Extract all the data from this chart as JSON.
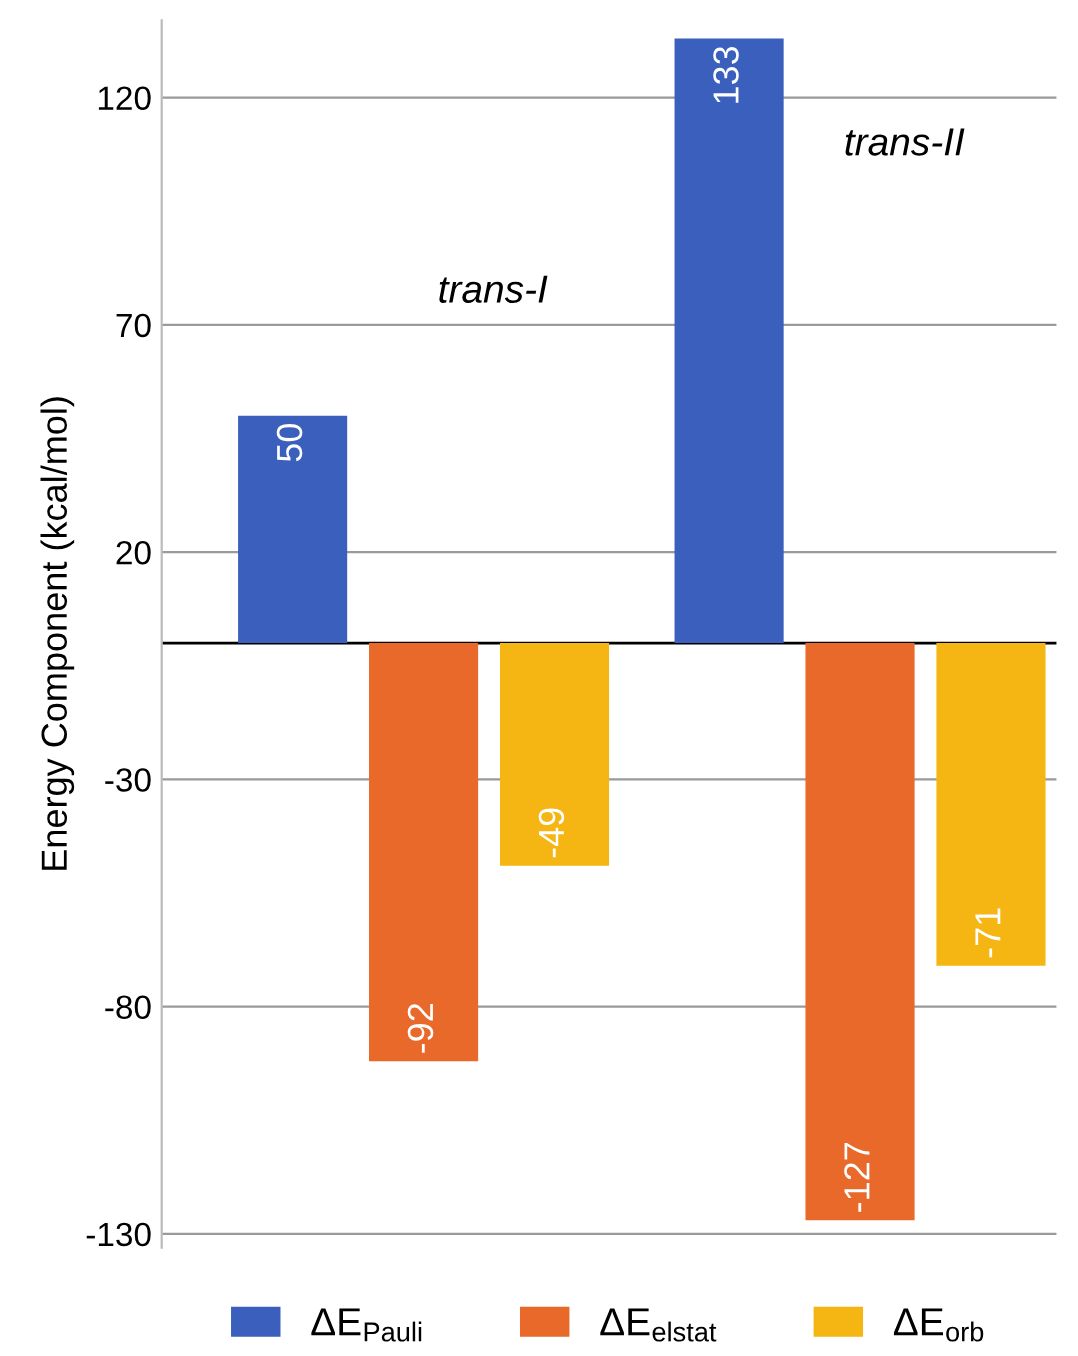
{
  "chart_data": {
    "type": "bar",
    "ylabel": "Energy Component (kcal/mol)",
    "categories": [
      null,
      null
    ],
    "series": [
      {
        "name": "ΔE$_{Pauli}$",
        "color": "#3a5fbd",
        "values": [
          50,
          133
        ]
      },
      {
        "name": "ΔE$_{elstat}$",
        "color": "#e8692a",
        "values": [
          -92,
          -127
        ]
      },
      {
        "name": "ΔE$_{orb}$",
        "color": "#f5b513",
        "values": [
          -49,
          -71
        ]
      }
    ],
    "annotations": [
      "trans-I",
      "trans-II"
    ],
    "ylim": [
      -133,
      137
    ],
    "yticks": [
      120,
      70,
      20,
      -30,
      -80,
      -130
    ],
    "grid": "y",
    "legend": "bottom",
    "data_labels": true
  }
}
